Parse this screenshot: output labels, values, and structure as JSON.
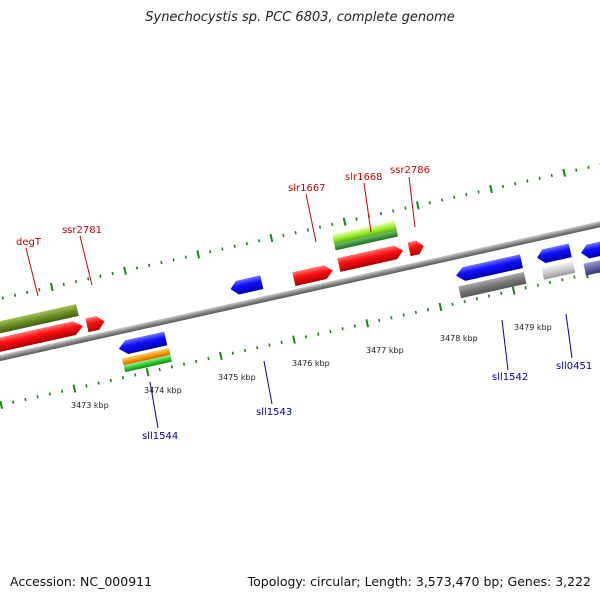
{
  "title": "Synechocystis sp. PCC 6803, complete genome",
  "footer": {
    "accession": "Accession: NC_000911",
    "summary": "Topology: circular; Length: 3,573,470 bp; Genes: 3,222"
  },
  "colors": {
    "forward_label": "#cc0000",
    "reverse_label": "#0000aa",
    "ticks": "#118811",
    "backbone": "#888888"
  },
  "scale_labels": [
    "3473 kbp",
    "3474 kbp",
    "3475 kbp",
    "3476 kbp",
    "3477 kbp",
    "3478 kbp",
    "3479 kbp"
  ],
  "forward_genes": [
    "degT",
    "ssr2781",
    "slr1667",
    "slr1668",
    "ssr2786"
  ],
  "reverse_genes": [
    "sll1544",
    "sll1543",
    "sll1542",
    "sll0451"
  ]
}
